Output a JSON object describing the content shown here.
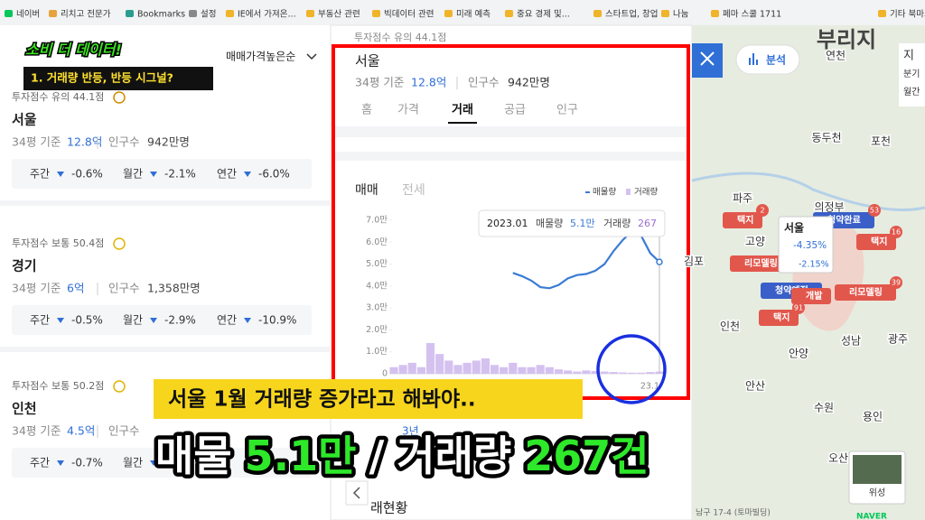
{
  "bookmarks": [
    "네이버",
    "리치고 전문가",
    "Bookmarks",
    "설정",
    "IE에서 가져온...",
    "부동산 관련",
    "빅데이터 관련",
    "미래 예측",
    "중요 경제 및...",
    "스타트업, 창업",
    "나눔",
    "페마 스쿨 1711",
    "기타 북마크"
  ],
  "list": {
    "sort": "매매가격높은순",
    "regions": [
      {
        "score": "투자점수 유의 44.1점",
        "name": "서울",
        "basis": "34평 기준",
        "price": "12.8억",
        "population_label": "인구수",
        "population": "942만명",
        "changes": [
          {
            "label": "주간",
            "value": "-0.6%"
          },
          {
            "label": "월간",
            "value": "-2.1%"
          },
          {
            "label": "연간",
            "value": "-6.0%"
          }
        ]
      },
      {
        "score": "투자점수 보통 50.4점",
        "name": "경기",
        "basis": "34평 기준",
        "price": "6억",
        "population_label": "인구수",
        "population": "1,358만명",
        "changes": [
          {
            "label": "주간",
            "value": "-0.5%"
          },
          {
            "label": "월간",
            "value": "-2.9%"
          },
          {
            "label": "연간",
            "value": "-10.9%"
          }
        ]
      },
      {
        "score": "투자점수 보통 50.2점",
        "name": "인천",
        "basis": "34평 기준",
        "price": "4.5억",
        "population_label": "인구수",
        "changes": [
          {
            "label": "주간",
            "value": "-0.7%"
          },
          {
            "label": "월간"
          }
        ]
      }
    ]
  },
  "detail": {
    "score": "투자점수 유의 44.1점",
    "name": "서울",
    "basis": "34평 기준",
    "price": "12.8억",
    "population_label": "인구수",
    "population": "942만명",
    "tabs": [
      "홈",
      "가격",
      "거래",
      "공급",
      "인구"
    ],
    "chart_tabs": [
      "매매",
      "전세"
    ],
    "period": "3년",
    "next_section": "래현황"
  },
  "chart_data": {
    "type": "combo",
    "categories": [
      null,
      null,
      null,
      null,
      null,
      null,
      null,
      null,
      null,
      null,
      null,
      null,
      null,
      null,
      null,
      null,
      null,
      null,
      null,
      null,
      null,
      null,
      null,
      null,
      null,
      null,
      null,
      null,
      null,
      "23.1"
    ],
    "ylim": [
      0,
      7
    ],
    "yticks": [
      0,
      {
        "value": 1,
        "label": "1.0만"
      },
      {
        "value": 2,
        "label": "2.0만"
      },
      {
        "value": 3,
        "label": "3.0만"
      },
      {
        "value": 4,
        "label": "4.0만"
      },
      {
        "value": 5,
        "label": "5.0만"
      },
      {
        "value": 6,
        "label": "6.0만"
      },
      {
        "value": 7,
        "label": "7.0만"
      }
    ],
    "series": [
      {
        "name": "매물량",
        "type": "line",
        "color": "#3a7bd5",
        "values": [
          null,
          null,
          null,
          null,
          null,
          null,
          null,
          null,
          null,
          null,
          null,
          null,
          null,
          4.6,
          4.45,
          4.25,
          3.95,
          3.9,
          4.05,
          4.35,
          4.5,
          4.55,
          4.7,
          5.0,
          5.6,
          6.1,
          6.5,
          6.3,
          5.5,
          5.1
        ]
      },
      {
        "name": "거래량",
        "type": "bar",
        "color": "#d4c1f0",
        "values": [
          0.3,
          0.4,
          0.5,
          0.3,
          1.4,
          0.9,
          0.6,
          0.4,
          0.5,
          0.6,
          0.7,
          0.4,
          0.3,
          0.5,
          0.3,
          0.3,
          0.4,
          0.3,
          0.2,
          0.15,
          0.1,
          0.15,
          0.12,
          0.1,
          0.08,
          0.06,
          0.05,
          0.05,
          0.08,
          0.1
        ]
      }
    ],
    "tooltip": {
      "date": "2023.01",
      "items": [
        {
          "label": "매물량",
          "value": "5.1만"
        },
        {
          "label": "거래량",
          "value": "267"
        }
      ]
    }
  },
  "map": {
    "analyze": "분석",
    "logo": "부리지",
    "satellite": "위성",
    "naver": "NAVER",
    "address": "남구 17-4 (토마빌딩)",
    "places": [
      "연천",
      "동두천",
      "포천",
      "파주",
      "의정부",
      "고양",
      "김포",
      "인천",
      "안양",
      "성남",
      "광주",
      "안산",
      "수원",
      "용인",
      "오산"
    ],
    "markers": [
      {
        "label": "택지",
        "badge": 2
      },
      {
        "label": "택지",
        "badge": 16
      },
      {
        "label": "리모델링"
      },
      {
        "label": "리모델링",
        "badge": 39
      },
      {
        "label": "택지",
        "badge": 91
      },
      {
        "label": "청약예정"
      },
      {
        "label": "청약완료",
        "badge": 53
      },
      {
        "label": "개발"
      }
    ],
    "popup": {
      "name": "서울",
      "weekly": "-4.35%",
      "monthly": "-2.15%"
    },
    "side": [
      "지",
      "분기",
      "월간"
    ]
  },
  "overlay": {
    "tag": "소비 더 데이터!",
    "headline": "1. 거래량 반등, 반등 시그널?",
    "subtitle": "서울 1월 거래량 증가라고 해봐야..",
    "caption": [
      "매물",
      "5.1만",
      "/",
      "거래량",
      "267건"
    ]
  }
}
